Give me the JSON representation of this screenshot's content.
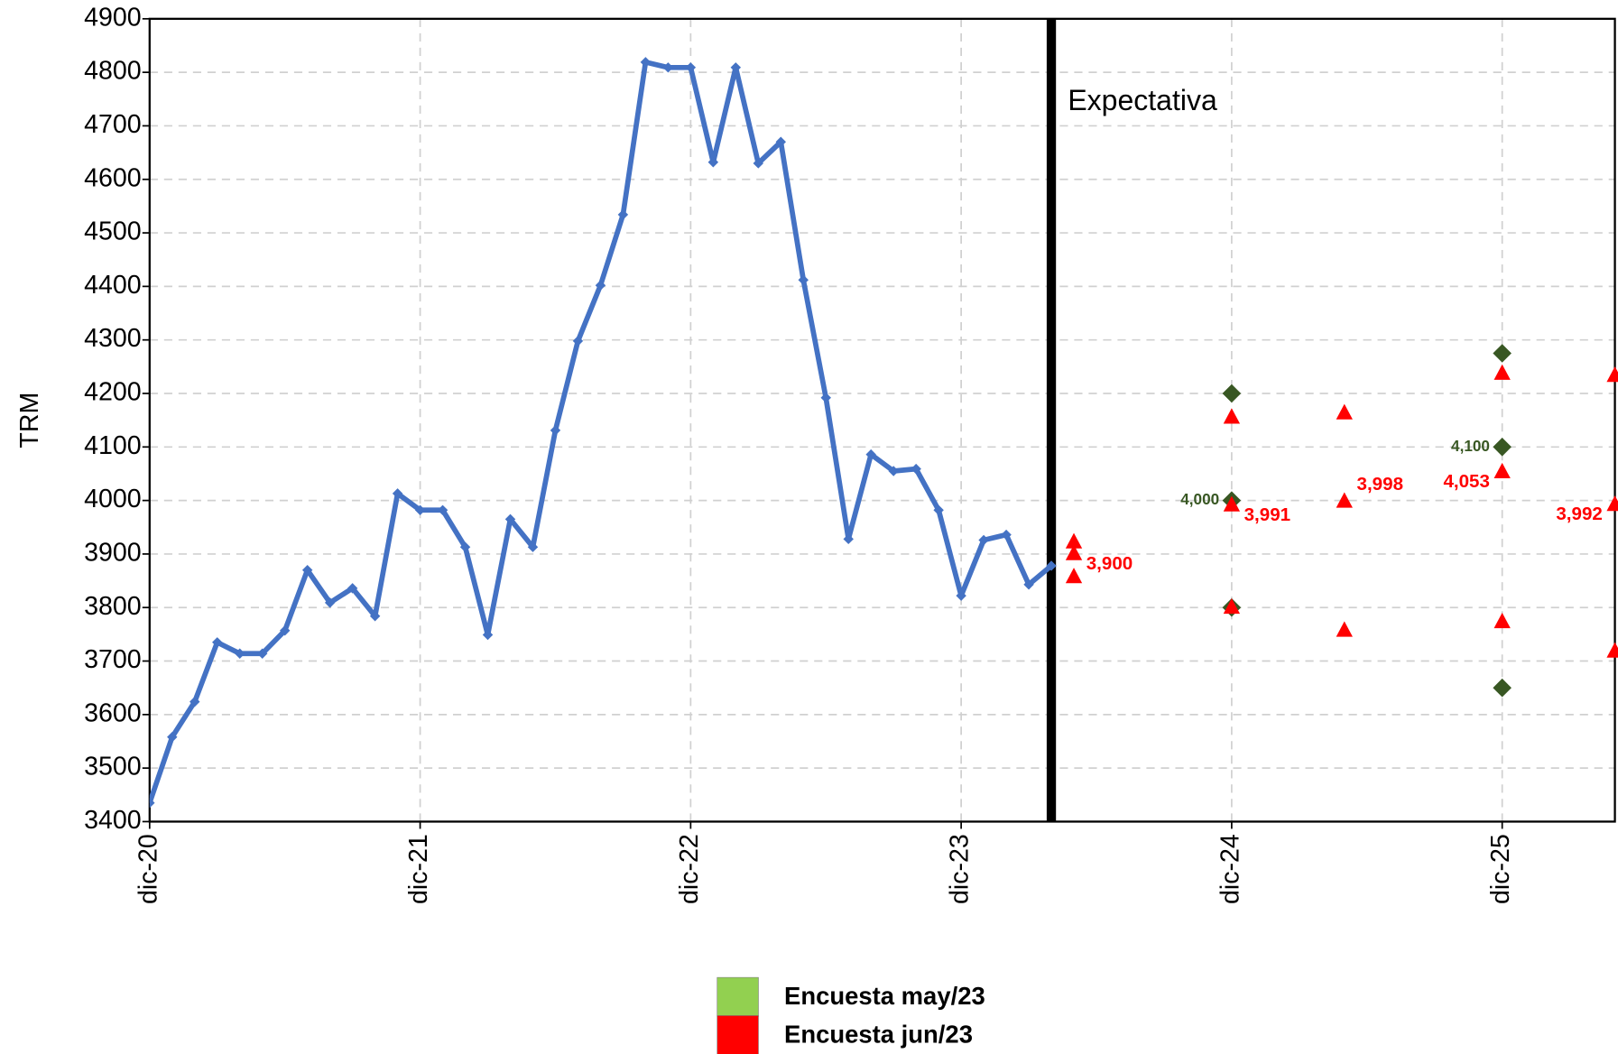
{
  "chart_data": {
    "type": "line",
    "y_label": "TRM",
    "annotation": "Expectativa",
    "divider_x": "2024-04",
    "xlim": [
      "2020-12",
      "2026-05"
    ],
    "xticks": [
      {
        "value": "2020-12",
        "label": "dic-20"
      },
      {
        "value": "2021-12",
        "label": "dic-21"
      },
      {
        "value": "2022-12",
        "label": "dic-22"
      },
      {
        "value": "2023-12",
        "label": "dic-23"
      },
      {
        "value": "2024-12",
        "label": "dic-24"
      },
      {
        "value": "2025-12",
        "label": "dic-25"
      }
    ],
    "ylim": [
      3400,
      4900
    ],
    "yticks": [
      3400,
      3500,
      3600,
      3700,
      3800,
      3900,
      4000,
      4100,
      4200,
      4300,
      4400,
      4500,
      4600,
      4700,
      4800,
      4900
    ],
    "grid": true,
    "series": [
      {
        "type": "line",
        "color": "#4472c4",
        "x": [
          "2020-12",
          "2021-01",
          "2021-02",
          "2021-03",
          "2021-04",
          "2021-05",
          "2021-06",
          "2021-07",
          "2021-08",
          "2021-09",
          "2021-10",
          "2021-11",
          "2021-12",
          "2022-01",
          "2022-02",
          "2022-03",
          "2022-04",
          "2022-05",
          "2022-06",
          "2022-07",
          "2022-08",
          "2022-09",
          "2022-10",
          "2022-11",
          "2022-12",
          "2023-01",
          "2023-02",
          "2023-03",
          "2023-04",
          "2023-05",
          "2023-06",
          "2023-07",
          "2023-08",
          "2023-09",
          "2023-10",
          "2023-11",
          "2023-12",
          "2024-01",
          "2024-02",
          "2024-03",
          "2024-04"
        ],
        "values": [
          3435,
          3558,
          3624,
          3735,
          3714,
          3714,
          3757,
          3870,
          3809,
          3836,
          3784,
          4013,
          3982,
          3982,
          3913,
          3749,
          3965,
          3913,
          4131,
          4298,
          4402,
          4534,
          4819,
          4809,
          4809,
          4632,
          4809,
          4630,
          4670,
          4412,
          4192,
          3928,
          4086,
          4055,
          4059,
          3982,
          3822,
          3926,
          3936,
          3843,
          3878
        ]
      },
      {
        "type": "scatter",
        "name": "Encuesta may/23",
        "color": "#92d050",
        "marker": "diamond",
        "marker_color": "#385723",
        "x": [
          "2024-12",
          "2024-12",
          "2024-12",
          "2025-12",
          "2025-12",
          "2025-12"
        ],
        "values": [
          4200,
          4000,
          3800,
          4275,
          4100,
          3650
        ],
        "value_labels": [
          null,
          "4,000",
          null,
          null,
          "4,100",
          null
        ]
      },
      {
        "type": "scatter",
        "name": "Encuesta jun/23",
        "color": "#ff0000",
        "marker": "triangle",
        "marker_color": "#ff0000",
        "x": [
          "2024-05",
          "2024-05",
          "2024-05",
          "2024-12",
          "2024-12",
          "2024-12",
          "2025-05",
          "2025-05",
          "2025-05",
          "2025-12",
          "2025-12",
          "2025-12",
          "2026-05",
          "2026-05",
          "2026-05"
        ],
        "values": [
          3922,
          3900,
          3857,
          4155,
          3991,
          3800,
          4163,
          3998,
          3757,
          4237,
          4053,
          3773,
          4233,
          3992,
          3718
        ],
        "value_labels": [
          null,
          "3,900",
          null,
          null,
          "3,991",
          null,
          null,
          "3,998",
          null,
          null,
          "4,053",
          null,
          null,
          "3,992",
          null
        ]
      }
    ]
  }
}
